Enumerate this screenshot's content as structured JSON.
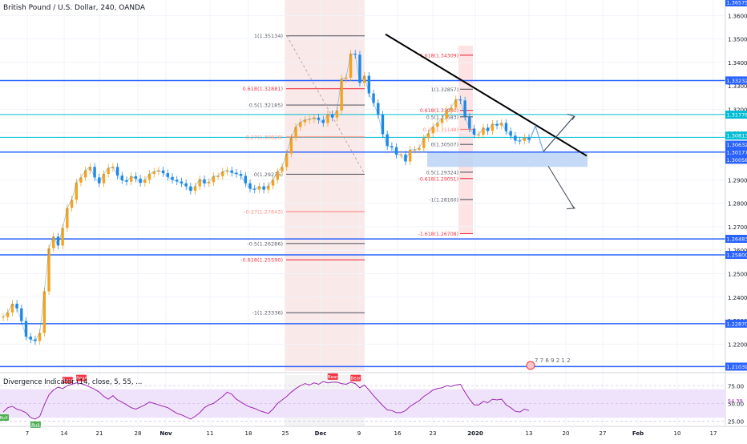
{
  "header": {
    "title": "British Pound / U.S. Dollar, 240, OANDA",
    "indicator": "Divergence Indicator (14, close, 5, 55, ..."
  },
  "colors": {
    "price_up": "#26a69a",
    "candle_up": "#f7a21b",
    "candle_down": "#1e88e5",
    "hline": "#2962ff",
    "cyan_line": "#00bcd4",
    "fib_red": "#f23645",
    "fib_gray": "#5d606b",
    "trend": "#000000",
    "zone": "#bbd4f5",
    "rsi_band": "#efe3fb",
    "rsi_line": "#9c27b0",
    "bear": "#f23645",
    "bull": "#4caf50"
  },
  "chart_data": {
    "type": "candlestick",
    "x_ticks": [
      "7",
      "14",
      "21",
      "28",
      "Nov",
      "11",
      "18",
      "25",
      "Dec",
      "9",
      "16",
      "23",
      "2020",
      "13",
      "20",
      "27",
      "Feb",
      "10",
      "17"
    ],
    "y_ticks": [
      "1.36000",
      "1.35000",
      "1.34000",
      "1.33000",
      "1.32000",
      "1.31000",
      "1.30000",
      "1.29000",
      "1.28000",
      "1.27000",
      "1.26000",
      "1.25000",
      "1.24000",
      "1.23000",
      "1.22000"
    ],
    "ylim": [
      1.2085,
      1.3666
    ],
    "price_labels": [
      "1.36575",
      "1.33232",
      "1.31776",
      "1.30813",
      "1.30632",
      "1.30177",
      "1.30058",
      "1.26483",
      "1.25800",
      "1.22870",
      "1.21039"
    ],
    "horizontal_levels": [
      1.3323,
      1.3178,
      1.3081,
      1.3018,
      1.2648,
      1.258,
      1.2287,
      1.2104
    ],
    "fib_left": [
      "1(1.35134)",
      "0.618(1.32881)",
      "0.5(1.32185)",
      "0.27(1.30828)",
      "0(1.29236)",
      "-0.27(1.27643)",
      "-0.5(1.26286)",
      "-0.618(1.25590)",
      "-1(1.23336)"
    ],
    "fib_right": [
      "1.618(1.34309)",
      "1(1.32857)",
      "0.618(1.31960)",
      "0.5(1.31683)",
      "0.27(1.31148)",
      "0(1.30507)",
      "0.5(1.29324)",
      "-0.618(1.29051)",
      "-1(1.28160)",
      "-1.618(1.26708)"
    ],
    "close": [
      1.2315,
      1.2335,
      1.2372,
      1.2352,
      1.2298,
      1.2232,
      1.222,
      1.2213,
      1.2248,
      1.2425,
      1.2608,
      1.2658,
      1.262,
      1.2695,
      1.278,
      1.2815,
      1.2888,
      1.291,
      1.294,
      1.2955,
      1.291,
      1.2885,
      1.2925,
      1.295,
      1.2955,
      1.2918,
      1.2898,
      1.2892,
      1.2915,
      1.2905,
      1.2887,
      1.29,
      1.2925,
      1.2935,
      1.294,
      1.2928,
      1.2912,
      1.29,
      1.2893,
      1.2885,
      1.2872,
      1.2853,
      1.2872,
      1.2902,
      1.2885,
      1.289,
      1.2915,
      1.2915,
      1.2935,
      1.294,
      1.293,
      1.2925,
      1.2917,
      1.2885,
      1.2862,
      1.2858,
      1.2872,
      1.2858,
      1.2875,
      1.29,
      1.2935,
      1.2955,
      1.3012,
      1.308,
      1.3125,
      1.3145,
      1.3155,
      1.3158,
      1.3165,
      1.3155,
      1.3142,
      1.318,
      1.3165,
      1.3195,
      1.333,
      1.3335,
      1.3437,
      1.3433,
      1.3313,
      1.3343,
      1.3268,
      1.3227,
      1.3177,
      1.3094,
      1.3044,
      1.3039,
      1.3007,
      1.3008,
      1.2978,
      1.3028,
      1.3028,
      1.3035,
      1.3078,
      1.3098,
      1.3126,
      1.3142,
      1.3162,
      1.3197,
      1.3207,
      1.3242,
      1.3238,
      1.3169,
      1.3118,
      1.3092,
      1.3092,
      1.3122,
      1.3108,
      1.3138,
      1.3131,
      1.3142,
      1.3107,
      1.3088,
      1.3067,
      1.3066,
      1.3079,
      1.3071
    ],
    "projection": [
      [
        1.3061,
        1.313,
        1.302,
        1.317
      ],
      [
        1.3061,
        1.2958,
        1.278
      ]
    ],
    "rsi": {
      "name": "Divergence Indicator (14, close, 5, 55, ...",
      "ticks": [
        "75.00",
        "50.00",
        "25.00"
      ],
      "ylim": [
        20,
        90
      ],
      "band": [
        30,
        70
      ],
      "values": [
        38,
        44,
        46,
        42,
        40,
        37,
        30,
        28,
        32,
        48,
        62,
        69,
        73,
        71,
        75,
        77,
        79,
        78,
        76,
        73,
        70,
        66,
        60,
        56,
        61,
        55,
        52,
        48,
        44,
        42,
        45,
        48,
        52,
        50,
        48,
        46,
        44,
        40,
        36,
        34,
        31,
        28,
        32,
        37,
        44,
        48,
        50,
        55,
        60,
        66,
        63,
        56,
        52,
        48,
        45,
        43,
        40,
        38,
        36,
        42,
        50,
        55,
        60,
        66,
        71,
        75,
        78,
        76,
        79,
        77,
        81,
        79,
        80,
        80,
        78,
        77,
        80,
        78,
        72,
        76,
        69,
        61,
        54,
        47,
        41,
        40,
        37,
        37,
        40,
        46,
        50,
        54,
        60,
        64,
        69,
        71,
        72,
        75,
        74,
        76,
        77,
        66,
        56,
        48,
        48,
        53,
        51,
        56,
        55,
        56,
        48,
        44,
        39,
        38,
        42,
        40
      ],
      "labels": [
        {
          "text": "Bear",
          "i": 14
        },
        {
          "text": "Bear",
          "i": 17
        },
        {
          "text": "Bear",
          "i": 72
        },
        {
          "text": "Bear",
          "i": 77
        },
        {
          "text": "Bull",
          "i": 0
        },
        {
          "text": "Bull",
          "i": 7
        }
      ],
      "last": "54.39"
    }
  }
}
